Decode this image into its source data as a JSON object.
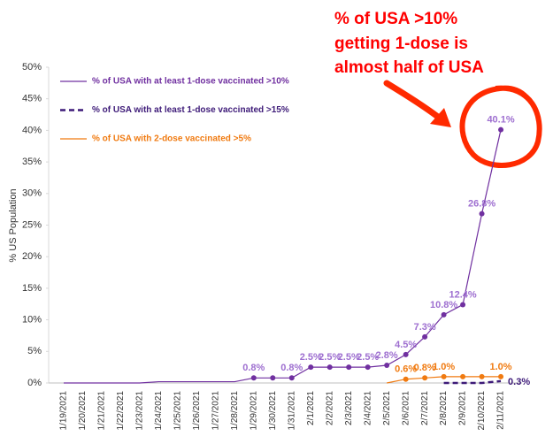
{
  "chart_data": {
    "type": "line",
    "annotation": [
      "% of USA >10%",
      "getting 1-dose is",
      "almost half of USA"
    ],
    "y_label": "% US Population",
    "categories": [
      "1/19/2021",
      "1/20/2021",
      "1/21/2021",
      "1/22/2021",
      "1/23/2021",
      "1/24/2021",
      "1/25/2021",
      "1/26/2021",
      "1/27/2021",
      "1/28/2021",
      "1/29/2021",
      "1/30/2021",
      "1/31/2021",
      "2/1/2021",
      "2/2/2021",
      "2/3/2021",
      "2/4/2021",
      "2/5/2021",
      "2/6/2021",
      "2/7/2021",
      "2/8/2021",
      "2/9/2021",
      "2/10/2021",
      "2/11/2021"
    ],
    "series": [
      {
        "name": "% of USA with at least 1-dose vaccinated >10%",
        "color": "#7030a0",
        "label_color": "#9e6fd0",
        "dash": false,
        "values": [
          0,
          0,
          0,
          0,
          0,
          0.2,
          0.2,
          0.2,
          0.2,
          0.2,
          0.8,
          0.8,
          0.8,
          2.5,
          2.5,
          2.5,
          2.5,
          2.8,
          4.5,
          7.3,
          10.8,
          12.4,
          26.8,
          40.1
        ],
        "value_labels": [
          null,
          null,
          null,
          null,
          null,
          null,
          null,
          null,
          null,
          null,
          "0.8%",
          null,
          "0.8%",
          "2.5%",
          "2.5%",
          "2.5%",
          "2.5%",
          "2.8%",
          "4.5%",
          "7.3%",
          "10.8%",
          "12.4%",
          "26.8%",
          "40.1%"
        ]
      },
      {
        "name": "% of USA with at least 1-dose vaccinated >15%",
        "color": "#3d1a78",
        "label_color": "#3d1a78",
        "dash": true,
        "values": [
          null,
          null,
          null,
          null,
          null,
          null,
          null,
          null,
          null,
          null,
          null,
          null,
          null,
          null,
          null,
          null,
          null,
          null,
          null,
          null,
          0,
          0,
          0,
          0.3
        ],
        "value_labels": [
          null,
          null,
          null,
          null,
          null,
          null,
          null,
          null,
          null,
          null,
          null,
          null,
          null,
          null,
          null,
          null,
          null,
          null,
          null,
          null,
          null,
          null,
          null,
          "0.3%"
        ]
      },
      {
        "name": "% of USA with 2-dose vaccinated >5%",
        "color": "#f07a10",
        "label_color": "#f07a10",
        "dash": false,
        "values": [
          null,
          null,
          null,
          null,
          null,
          null,
          null,
          null,
          null,
          null,
          null,
          null,
          null,
          null,
          null,
          null,
          null,
          0,
          0.6,
          0.8,
          1.0,
          1.0,
          1.0,
          1.0
        ],
        "value_labels": [
          null,
          null,
          null,
          null,
          null,
          null,
          null,
          null,
          null,
          null,
          null,
          null,
          null,
          null,
          null,
          null,
          null,
          null,
          "0.6%",
          "0.8%",
          "1.0%",
          null,
          null,
          "1.0%"
        ]
      }
    ],
    "ylim": [
      0,
      50
    ],
    "yticks": [
      {
        "value": 0,
        "label": "0%"
      },
      {
        "value": 5,
        "label": "5%"
      },
      {
        "value": 10,
        "label": "10%"
      },
      {
        "value": 15,
        "label": "15%"
      },
      {
        "value": 20,
        "label": "20%"
      },
      {
        "value": 25,
        "label": "25%"
      },
      {
        "value": 30,
        "label": "30%"
      },
      {
        "value": 35,
        "label": "35%"
      },
      {
        "value": 40,
        "label": "40%"
      },
      {
        "value": 45,
        "label": "45%"
      },
      {
        "value": 50,
        "label": "50%"
      }
    ]
  }
}
